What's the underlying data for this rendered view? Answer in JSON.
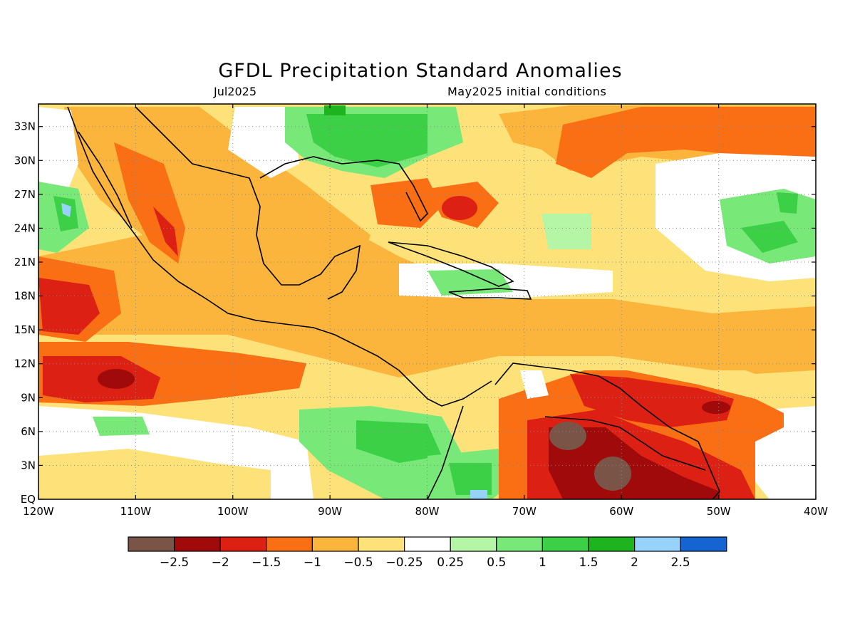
{
  "title": "GFDL Precipitation Standard Anomalies",
  "subtitle_left": "Jul2025",
  "subtitle_right": "May2025 initial conditions",
  "lat_labels": [
    "33N",
    "30N",
    "27N",
    "24N",
    "21N",
    "18N",
    "15N",
    "12N",
    "9N",
    "6N",
    "3N",
    "EQ"
  ],
  "lat_values": [
    33,
    30,
    27,
    24,
    21,
    18,
    15,
    12,
    9,
    6,
    3,
    0
  ],
  "lon_labels": [
    "120W",
    "110W",
    "100W",
    "90W",
    "80W",
    "70W",
    "60W",
    "50W",
    "40W"
  ],
  "lon_values": [
    -120,
    -110,
    -100,
    -90,
    -80,
    -70,
    -60,
    -50,
    -40
  ],
  "extent": {
    "lon_min": -120,
    "lon_max": -40,
    "lat_min": 0,
    "lat_max": 35
  },
  "colorbar": {
    "colors": [
      "#7b5448",
      "#a00a0a",
      "#dc2014",
      "#fa6e14",
      "#fbb43c",
      "#fde27a",
      "#ffffff",
      "#b4f5a6",
      "#78e878",
      "#3cd046",
      "#1eb41e",
      "#96d2fa",
      "#1464d2"
    ],
    "labels": [
      "-2.5",
      "-2",
      "-1.5",
      "-1",
      "-0.5",
      "-0.25",
      "0.25",
      "0.5",
      "1",
      "1.5",
      "2",
      "2.5"
    ]
  }
}
